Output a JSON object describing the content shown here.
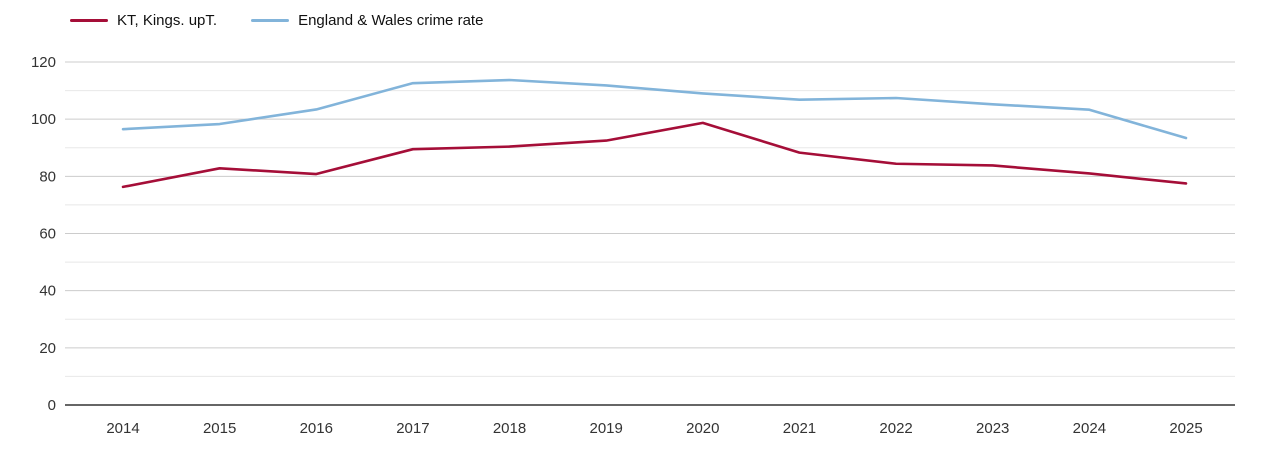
{
  "chart_data": {
    "type": "line",
    "title": "",
    "xlabel": "",
    "ylabel": "",
    "categories": [
      "2014",
      "2015",
      "2016",
      "2017",
      "2018",
      "2019",
      "2020",
      "2021",
      "2022",
      "2023",
      "2024",
      "2025"
    ],
    "series": [
      {
        "name": "KT, Kings. upT.",
        "color": "#a50e38",
        "values": [
          76.3,
          82.8,
          80.8,
          89.5,
          90.4,
          92.5,
          98.7,
          88.3,
          84.4,
          83.8,
          81.0,
          77.5
        ]
      },
      {
        "name": "England & Wales crime rate",
        "color": "#82b4da",
        "values": [
          96.5,
          98.3,
          103.4,
          112.6,
          113.7,
          111.8,
          109.0,
          106.8,
          107.4,
          105.2,
          103.3,
          93.4
        ]
      }
    ],
    "ylim": [
      0,
      120
    ],
    "y_major_ticks": [
      0,
      20,
      40,
      60,
      80,
      100,
      120
    ],
    "y_minor_ticks": [
      10,
      30,
      50,
      70,
      90,
      110
    ],
    "grid": true,
    "legend_position": "top-left",
    "colors": {
      "major_grid": "#cccccc",
      "minor_grid": "#e8e8e8",
      "axis_line": "#333333",
      "tick_label": "#333333",
      "background": "#ffffff"
    }
  }
}
